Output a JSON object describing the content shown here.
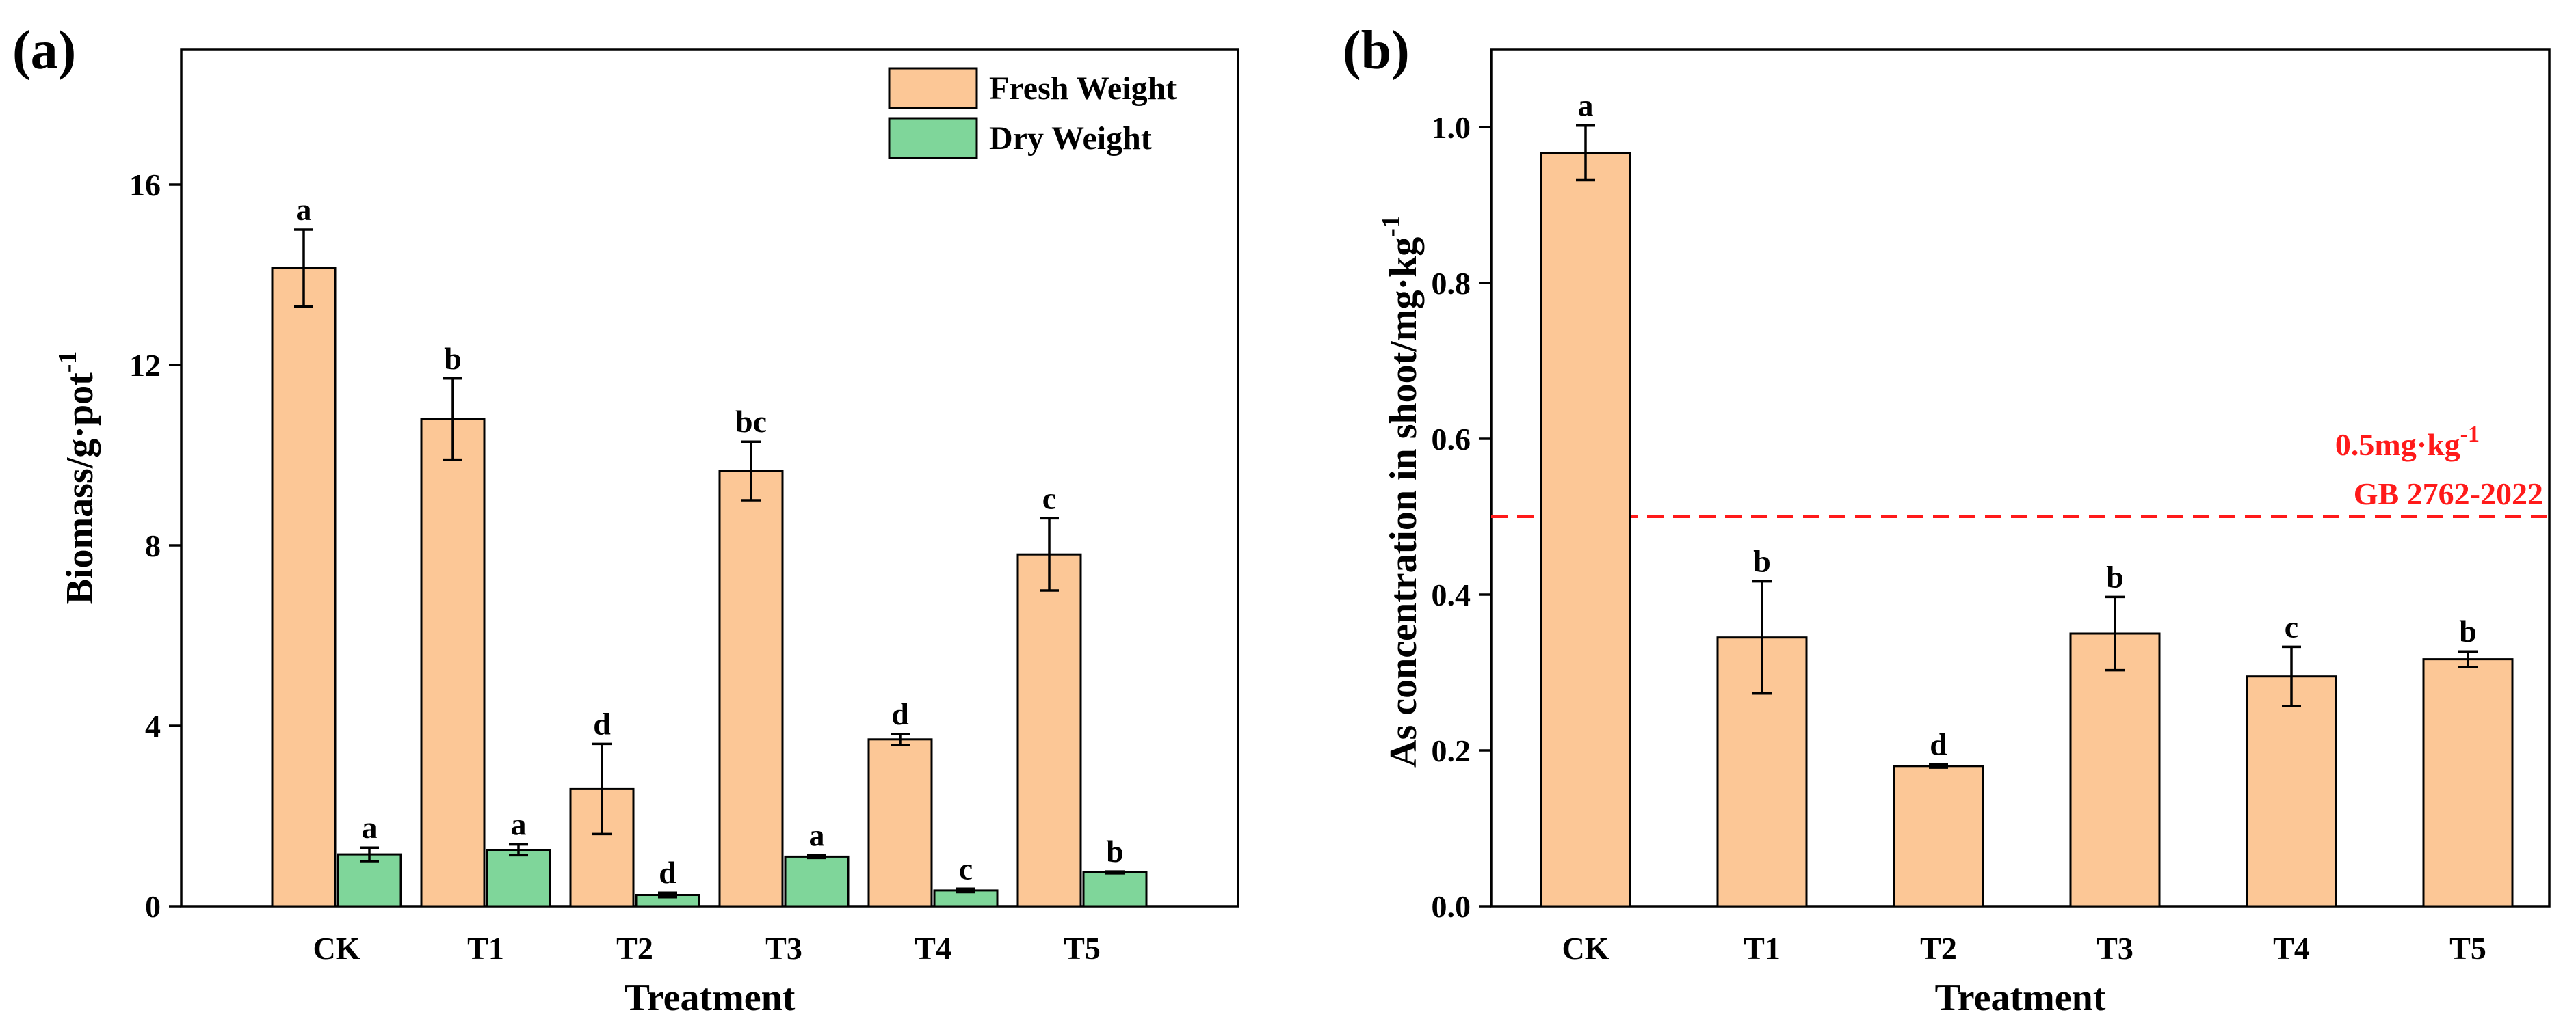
{
  "chart_data": [
    {
      "panel_label": "(a)",
      "type": "bar",
      "title": "",
      "xlabel": "Treatment",
      "ylabel": "Biomass/g·pot",
      "ylabel_sup": "-1",
      "ylim": [
        0,
        19
      ],
      "yticks": [
        "0",
        "4",
        "8",
        "12",
        "16"
      ],
      "ytick_values": [
        0,
        4,
        8,
        12,
        16
      ],
      "categories": [
        "CK",
        "T1",
        "T2",
        "T3",
        "T4",
        "T5"
      ],
      "legend_position": "top-right",
      "series": [
        {
          "name": "Fresh Weight",
          "color": "#FCC796",
          "values": [
            14.15,
            10.8,
            2.6,
            9.65,
            3.7,
            7.8
          ],
          "errors": [
            0.85,
            0.9,
            1.0,
            0.65,
            0.12,
            0.8
          ],
          "significance": [
            "a",
            "b",
            "d",
            "bc",
            "d",
            "c"
          ]
        },
        {
          "name": "Dry Weight",
          "color": "#7FD69A",
          "values": [
            1.15,
            1.25,
            0.25,
            1.1,
            0.35,
            0.75
          ],
          "errors": [
            0.15,
            0.12,
            0.05,
            0.03,
            0.04,
            0.02
          ],
          "significance": [
            "a",
            "a",
            "d",
            "a",
            "c",
            "b"
          ]
        }
      ]
    },
    {
      "panel_label": "(b)",
      "type": "bar",
      "title": "",
      "xlabel": "Treatment",
      "ylabel": "As concentration in shoot/mg·kg",
      "ylabel_sup": "-1",
      "ylim": [
        0,
        1.1
      ],
      "yticks": [
        "0.0",
        "0.2",
        "0.4",
        "0.6",
        "0.8",
        "1.0"
      ],
      "ytick_values": [
        0,
        0.2,
        0.4,
        0.6,
        0.8,
        1.0
      ],
      "categories": [
        "CK",
        "T1",
        "T2",
        "T3",
        "T4",
        "T5"
      ],
      "series": [
        {
          "name": "As concentration",
          "color": "#FCC796",
          "values": [
            0.967,
            0.345,
            0.18,
            0.35,
            0.295,
            0.317
          ],
          "errors": [
            0.035,
            0.072,
            0.002,
            0.047,
            0.038,
            0.01
          ],
          "significance": [
            "a",
            "b",
            "d",
            "b",
            "c",
            "b"
          ]
        }
      ],
      "reference_line": {
        "value": 0.5,
        "color": "#FF1A1A",
        "label_line1": "0.5mg·kg",
        "label_line1_sup": "-1",
        "label_line2": "GB 2762-2022"
      }
    }
  ]
}
